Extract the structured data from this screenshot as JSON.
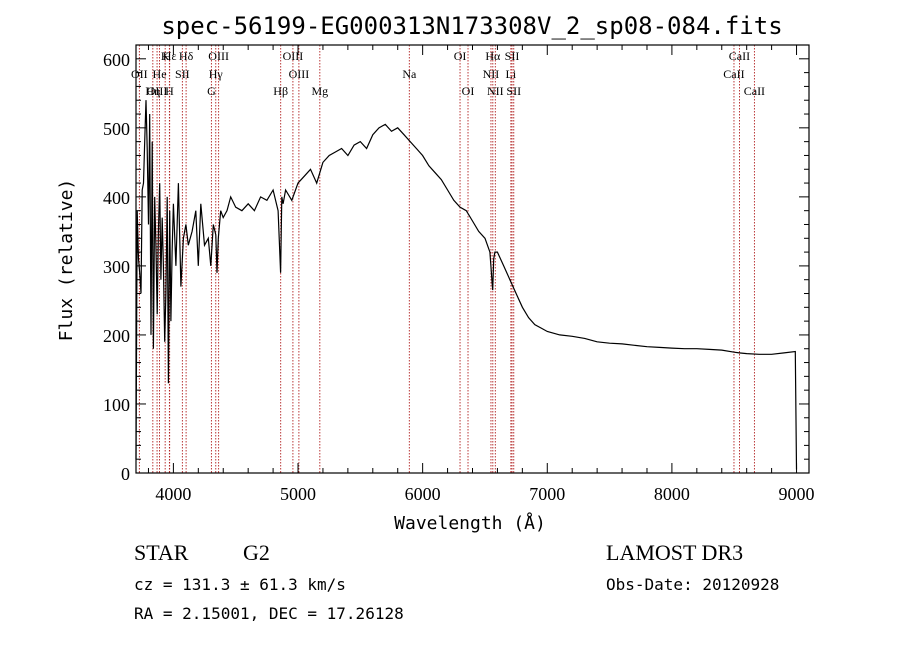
{
  "chart_data": {
    "type": "line",
    "title": "spec-56199-EG000313N173308V_2_sp08-084.fits",
    "xlabel": "Wavelength (Å)",
    "ylabel": "Flux (relative)",
    "xlim": [
      3700,
      9100
    ],
    "ylim": [
      0,
      620
    ],
    "xticks": [
      4000,
      5000,
      6000,
      7000,
      8000,
      9000
    ],
    "yticks": [
      0,
      100,
      200,
      300,
      400,
      500,
      600
    ],
    "series": [
      {
        "name": "flux",
        "x": [
          3700,
          3710,
          3720,
          3730,
          3740,
          3750,
          3760,
          3770,
          3780,
          3790,
          3800,
          3810,
          3820,
          3830,
          3840,
          3850,
          3860,
          3870,
          3880,
          3890,
          3900,
          3910,
          3920,
          3930,
          3940,
          3950,
          3960,
          3970,
          3980,
          3990,
          4000,
          4020,
          4040,
          4060,
          4080,
          4100,
          4120,
          4150,
          4180,
          4200,
          4220,
          4250,
          4280,
          4300,
          4320,
          4340,
          4350,
          4360,
          4380,
          4400,
          4430,
          4460,
          4500,
          4550,
          4600,
          4650,
          4700,
          4750,
          4800,
          4840,
          4860,
          4870,
          4880,
          4900,
          4950,
          5000,
          5050,
          5100,
          5150,
          5200,
          5250,
          5300,
          5350,
          5400,
          5450,
          5500,
          5550,
          5600,
          5650,
          5700,
          5750,
          5800,
          5850,
          5900,
          5950,
          6000,
          6050,
          6100,
          6150,
          6200,
          6250,
          6300,
          6350,
          6400,
          6450,
          6500,
          6540,
          6560,
          6562,
          6570,
          6580,
          6600,
          6650,
          6700,
          6750,
          6800,
          6850,
          6900,
          6950,
          7000,
          7100,
          7200,
          7300,
          7400,
          7500,
          7600,
          7700,
          7800,
          7900,
          8000,
          8100,
          8200,
          8300,
          8400,
          8500,
          8540,
          8600,
          8700,
          8800,
          8900,
          8990,
          9000
        ],
        "y": [
          20,
          380,
          310,
          290,
          260,
          410,
          420,
          480,
          540,
          470,
          360,
          520,
          200,
          480,
          180,
          400,
          330,
          230,
          350,
          420,
          280,
          370,
          300,
          190,
          260,
          400,
          130,
          380,
          220,
          320,
          390,
          300,
          420,
          270,
          340,
          360,
          330,
          350,
          380,
          300,
          390,
          330,
          340,
          300,
          360,
          345,
          290,
          340,
          380,
          370,
          380,
          400,
          385,
          380,
          390,
          380,
          400,
          395,
          410,
          380,
          290,
          400,
          390,
          410,
          395,
          420,
          430,
          440,
          420,
          450,
          460,
          465,
          470,
          460,
          475,
          480,
          470,
          490,
          500,
          505,
          495,
          500,
          490,
          480,
          470,
          460,
          445,
          435,
          425,
          410,
          395,
          385,
          380,
          365,
          350,
          340,
          320,
          270,
          265,
          310,
          320,
          320,
          300,
          280,
          260,
          240,
          225,
          215,
          210,
          205,
          200,
          198,
          195,
          190,
          188,
          187,
          185,
          183,
          182,
          181,
          180,
          180,
          179,
          178,
          175,
          174,
          173,
          172,
          172,
          174,
          176,
          5
        ]
      }
    ],
    "lines": [
      {
        "name": "Hε",
        "wave": 3970,
        "row": 0
      },
      {
        "name": "K",
        "wave": 3934,
        "row": 0
      },
      {
        "name": "Hδ",
        "wave": 4102,
        "row": 0
      },
      {
        "name": "OII",
        "wave": 3727,
        "row": 1
      },
      {
        "name": "He",
        "wave": 3889,
        "row": 1
      },
      {
        "name": "SII",
        "wave": 4072,
        "row": 1
      },
      {
        "name": "OIII",
        "wave": 3869,
        "row": 2
      },
      {
        "name": "Hη",
        "wave": 3835,
        "row": 2
      },
      {
        "name": "H",
        "wave": 3968,
        "row": 2
      },
      {
        "name": "OIII",
        "wave": 4363,
        "row": 0
      },
      {
        "name": "Hγ",
        "wave": 4340,
        "row": 1
      },
      {
        "name": "G",
        "wave": 4305,
        "row": 2
      },
      {
        "name": "Hβ",
        "wave": 4861,
        "row": 2
      },
      {
        "name": "OIII",
        "wave": 4959,
        "row": 0
      },
      {
        "name": "OIII",
        "wave": 5007,
        "row": 1
      },
      {
        "name": "Mg",
        "wave": 5175,
        "row": 2
      },
      {
        "name": "Na",
        "wave": 5893,
        "row": 1
      },
      {
        "name": "OI",
        "wave": 6300,
        "row": 0
      },
      {
        "name": "OI",
        "wave": 6364,
        "row": 2
      },
      {
        "name": "Hα",
        "wave": 6563,
        "row": 0
      },
      {
        "name": "SII",
        "wave": 6717,
        "row": 0
      },
      {
        "name": "NII",
        "wave": 6548,
        "row": 1
      },
      {
        "name": "Li",
        "wave": 6708,
        "row": 1
      },
      {
        "name": "NII",
        "wave": 6583,
        "row": 2
      },
      {
        "name": "SII",
        "wave": 6731,
        "row": 2
      },
      {
        "name": "CaII",
        "wave": 8542,
        "row": 0
      },
      {
        "name": "CaII",
        "wave": 8498,
        "row": 1
      },
      {
        "name": "CaII",
        "wave": 8662,
        "row": 2
      }
    ]
  },
  "info": {
    "class": "STAR",
    "subclass": "G2",
    "survey": "LAMOST DR3",
    "cz": "cz = 131.3 ± 61.3 km/s",
    "obs_date": "Obs-Date: 20120928",
    "radec": "RA =   2.15001, DEC =  17.26128"
  },
  "colors": {
    "axis": "#000000",
    "line_marker": "#b22222",
    "spectrum": "#000000"
  }
}
